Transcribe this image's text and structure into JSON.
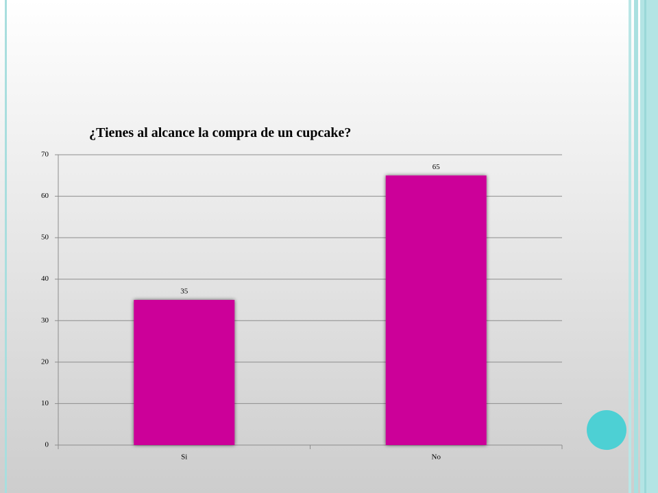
{
  "chart_data": {
    "type": "bar",
    "title": "¿Tienes al alcance la compra de un cupcake?",
    "categories": [
      "Si",
      "No"
    ],
    "values": [
      35,
      65
    ],
    "color": "#cc0099",
    "ylim": [
      0,
      70
    ],
    "yticks": [
      0,
      10,
      20,
      30,
      40,
      50,
      60,
      70
    ],
    "grid": true
  }
}
